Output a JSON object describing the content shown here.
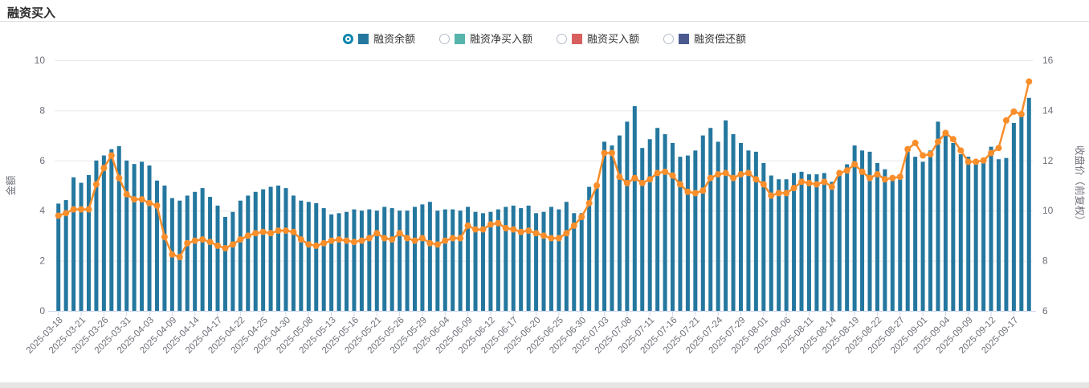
{
  "header": {
    "title": "融资买入"
  },
  "legend": {
    "items": [
      {
        "label": "融资余额",
        "color": "#24779f",
        "selected": true
      },
      {
        "label": "融资净买入额",
        "color": "#56b4ad",
        "selected": false
      },
      {
        "label": "融资买入额",
        "color": "#d95f5f",
        "selected": false
      },
      {
        "label": "融资偿还额",
        "color": "#4a5a8e",
        "selected": false
      }
    ]
  },
  "chart_data": {
    "type": "bar+line",
    "title": "融资买入",
    "x_label_every": 3,
    "grid": true,
    "legend_position": "top",
    "y_left": {
      "name": "金额",
      "min": 0,
      "max": 10,
      "ticks": [
        0,
        2,
        4,
        6,
        8,
        10
      ]
    },
    "y_right": {
      "name": "收盘价（前复权）",
      "min": 6,
      "max": 16,
      "ticks": [
        6,
        8,
        10,
        12,
        14,
        16
      ]
    },
    "x": [
      "2025-03-18",
      "2025-03-19",
      "2025-03-20",
      "2025-03-21",
      "2025-03-24",
      "2025-03-25",
      "2025-03-26",
      "2025-03-27",
      "2025-03-28",
      "2025-03-31",
      "2025-04-01",
      "2025-04-02",
      "2025-04-03",
      "2025-04-07",
      "2025-04-08",
      "2025-04-09",
      "2025-04-10",
      "2025-04-11",
      "2025-04-14",
      "2025-04-15",
      "2025-04-16",
      "2025-04-17",
      "2025-04-18",
      "2025-04-21",
      "2025-04-22",
      "2025-04-23",
      "2025-04-24",
      "2025-04-25",
      "2025-04-28",
      "2025-04-29",
      "2025-04-30",
      "2025-05-06",
      "2025-05-07",
      "2025-05-08",
      "2025-05-09",
      "2025-05-12",
      "2025-05-13",
      "2025-05-14",
      "2025-05-15",
      "2025-05-16",
      "2025-05-19",
      "2025-05-20",
      "2025-05-21",
      "2025-05-22",
      "2025-05-23",
      "2025-05-26",
      "2025-05-27",
      "2025-05-28",
      "2025-05-29",
      "2025-05-30",
      "2025-06-03",
      "2025-06-04",
      "2025-06-05",
      "2025-06-06",
      "2025-06-09",
      "2025-06-10",
      "2025-06-11",
      "2025-06-12",
      "2025-06-13",
      "2025-06-16",
      "2025-06-17",
      "2025-06-18",
      "2025-06-19",
      "2025-06-20",
      "2025-06-23",
      "2025-06-24",
      "2025-06-25",
      "2025-06-26",
      "2025-06-27",
      "2025-06-30",
      "2025-07-01",
      "2025-07-02",
      "2025-07-03",
      "2025-07-04",
      "2025-07-07",
      "2025-07-08",
      "2025-07-09",
      "2025-07-10",
      "2025-07-11",
      "2025-07-14",
      "2025-07-15",
      "2025-07-16",
      "2025-07-17",
      "2025-07-18",
      "2025-07-21",
      "2025-07-22",
      "2025-07-23",
      "2025-07-24",
      "2025-07-25",
      "2025-07-28",
      "2025-07-29",
      "2025-07-30",
      "2025-07-31",
      "2025-08-01",
      "2025-08-04",
      "2025-08-05",
      "2025-08-06",
      "2025-08-07",
      "2025-08-08",
      "2025-08-11",
      "2025-08-12",
      "2025-08-13",
      "2025-08-14",
      "2025-08-15",
      "2025-08-18",
      "2025-08-19",
      "2025-08-20",
      "2025-08-21",
      "2025-08-22",
      "2025-08-25",
      "2025-08-26",
      "2025-08-27",
      "2025-08-28",
      "2025-08-29",
      "2025-09-01",
      "2025-09-02",
      "2025-09-03",
      "2025-09-04",
      "2025-09-05",
      "2025-09-08",
      "2025-09-09",
      "2025-09-10",
      "2025-09-11",
      "2025-09-12",
      "2025-09-15",
      "2025-09-16",
      "2025-09-17",
      "2025-09-18",
      "2025-09-19"
    ],
    "series": [
      {
        "name": "融资余额",
        "type": "bar",
        "axis": "left",
        "color": "#24779f",
        "values": [
          4.28,
          4.42,
          5.33,
          5.11,
          5.42,
          6.0,
          6.2,
          6.45,
          6.57,
          6.0,
          5.86,
          5.95,
          5.8,
          5.2,
          5.0,
          4.5,
          4.4,
          4.6,
          4.75,
          4.9,
          4.55,
          4.2,
          3.75,
          3.95,
          4.4,
          4.6,
          4.75,
          4.85,
          4.95,
          5.0,
          4.9,
          4.6,
          4.4,
          4.35,
          4.3,
          4.1,
          3.85,
          3.9,
          3.95,
          4.05,
          4.0,
          4.05,
          4.0,
          4.15,
          4.1,
          4.0,
          4.0,
          4.15,
          4.25,
          4.35,
          4.0,
          4.05,
          4.05,
          4.0,
          4.15,
          3.95,
          3.9,
          3.95,
          4.05,
          4.15,
          4.2,
          4.1,
          4.2,
          3.9,
          3.95,
          4.15,
          4.05,
          4.35,
          3.9,
          3.9,
          4.95,
          5.05,
          6.75,
          6.6,
          7.0,
          7.55,
          8.17,
          6.5,
          6.85,
          7.3,
          7.05,
          6.7,
          6.15,
          6.2,
          6.4,
          7.0,
          7.3,
          6.75,
          7.6,
          7.05,
          6.7,
          6.4,
          6.35,
          5.9,
          5.4,
          5.25,
          5.25,
          5.5,
          5.55,
          5.45,
          5.45,
          5.5,
          5.15,
          5.45,
          5.85,
          6.6,
          6.4,
          6.35,
          5.9,
          5.65,
          5.25,
          5.35,
          6.45,
          6.15,
          5.95,
          6.4,
          7.55,
          7.15,
          6.7,
          6.25,
          6.15,
          5.95,
          6.0,
          6.55,
          6.05,
          6.1,
          7.5,
          7.8,
          8.5
        ]
      },
      {
        "name": "收盘价（前复权）",
        "type": "line",
        "axis": "right",
        "color": "#f98e2b",
        "values": [
          9.8,
          9.9,
          10.05,
          10.05,
          10.05,
          11.05,
          11.7,
          12.2,
          11.3,
          10.65,
          10.45,
          10.45,
          10.3,
          10.2,
          8.95,
          8.25,
          8.15,
          8.7,
          8.8,
          8.85,
          8.75,
          8.6,
          8.5,
          8.65,
          8.85,
          9.0,
          9.1,
          9.15,
          9.1,
          9.2,
          9.2,
          9.15,
          8.85,
          8.65,
          8.6,
          8.7,
          8.8,
          8.85,
          8.8,
          8.75,
          8.8,
          8.9,
          9.1,
          8.9,
          8.85,
          9.1,
          8.9,
          8.8,
          8.9,
          8.7,
          8.65,
          8.8,
          8.9,
          8.9,
          9.4,
          9.25,
          9.25,
          9.45,
          9.5,
          9.3,
          9.25,
          9.15,
          9.2,
          9.1,
          9.0,
          8.9,
          8.9,
          9.1,
          9.4,
          9.75,
          10.3,
          11.0,
          12.3,
          12.3,
          11.35,
          11.1,
          11.3,
          11.1,
          11.25,
          11.5,
          11.55,
          11.4,
          11.05,
          10.75,
          10.7,
          10.8,
          11.3,
          11.45,
          11.5,
          11.3,
          11.45,
          11.5,
          11.25,
          11.05,
          10.6,
          10.7,
          10.7,
          10.9,
          11.15,
          11.1,
          11.05,
          11.15,
          10.95,
          11.5,
          11.6,
          11.85,
          11.55,
          11.3,
          11.45,
          11.25,
          11.3,
          11.35,
          12.45,
          12.7,
          12.2,
          12.25,
          12.75,
          13.1,
          12.85,
          12.4,
          11.95,
          11.95,
          12.0,
          12.3,
          12.5,
          13.6,
          13.95,
          13.85,
          15.15
        ]
      }
    ],
    "colors": {
      "grid_line": "#e8e8e8",
      "axis_line": "#ccd6eb",
      "axis_text": "#6e7079"
    }
  }
}
